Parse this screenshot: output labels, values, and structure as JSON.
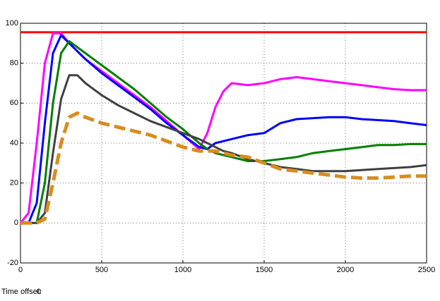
{
  "chart_data": {
    "type": "line",
    "x": [
      0,
      50,
      100,
      150,
      200,
      250,
      300,
      350,
      400,
      500,
      600,
      700,
      800,
      900,
      1000,
      1100,
      1150,
      1200,
      1250,
      1300,
      1400,
      1500,
      1600,
      1700,
      1800,
      1900,
      2000,
      2100,
      2200,
      2300,
      2400,
      2500
    ],
    "series": [
      {
        "color": "#ff0000",
        "style": "solid",
        "values": [
          95.5,
          95.5,
          95.5,
          95.5,
          95.5,
          95.5,
          95.5,
          95.5,
          95.5,
          95.5,
          95.5,
          95.5,
          95.5,
          95.5,
          95.5,
          95.5,
          95.5,
          95.5,
          95.5,
          95.5,
          95.5,
          95.5,
          95.5,
          95.5,
          95.5,
          95.5,
          95.5,
          95.5,
          95.5,
          95.5,
          95.5,
          95.5
        ]
      },
      {
        "color": "#ff00ff",
        "style": "solid",
        "values": [
          0,
          5,
          40,
          80,
          95,
          95,
          90,
          86,
          82,
          76,
          70,
          64,
          58,
          51,
          44,
          37,
          45,
          58,
          66,
          70,
          69,
          70,
          72,
          73,
          72,
          71,
          70,
          69,
          68,
          67,
          66.5,
          66.5
        ]
      },
      {
        "color": "#0000ff",
        "style": "solid",
        "values": [
          0,
          0,
          10,
          50,
          85,
          94,
          90,
          86,
          82,
          75,
          69,
          63,
          57,
          50,
          44,
          38,
          37,
          40,
          41,
          42,
          44,
          45,
          50,
          52,
          52.5,
          53,
          53,
          52,
          51.5,
          51,
          50,
          49
        ]
      },
      {
        "color": "#007f00",
        "style": "solid",
        "values": [
          0,
          0,
          0,
          20,
          60,
          85,
          91,
          88,
          85,
          79,
          73,
          67,
          60,
          53,
          47,
          40,
          37,
          35,
          34,
          33,
          31,
          31,
          32,
          33,
          35,
          36,
          37,
          38,
          39,
          39,
          39.5,
          39.5
        ]
      },
      {
        "color": "#404040",
        "style": "solid",
        "values": [
          0,
          0,
          0,
          5,
          35,
          62,
          74,
          74,
          70,
          64,
          59,
          55,
          51,
          48,
          45,
          42,
          40,
          38,
          36,
          35,
          32,
          30,
          28,
          27,
          26,
          26,
          26,
          26.5,
          27,
          27.5,
          28,
          29
        ]
      },
      {
        "color": "#d98c1f",
        "style": "dashed",
        "values": [
          0,
          0,
          0,
          2,
          20,
          40,
          53,
          55,
          53,
          50,
          48,
          46,
          44,
          41,
          38,
          36,
          36,
          36,
          35,
          34,
          33,
          30,
          27,
          26,
          25,
          24,
          23,
          22.5,
          22.5,
          23,
          23.5,
          23.5
        ]
      }
    ],
    "xlim": [
      0,
      2500
    ],
    "xticks": [
      0,
      500,
      1000,
      1500,
      2000,
      2500
    ],
    "ylim": [
      -20,
      100
    ],
    "yticks": [
      -20,
      0,
      20,
      40,
      60,
      80,
      100
    ],
    "grid": true,
    "time_offset_label": "Time offset:",
    "time_offset_value": 0
  }
}
